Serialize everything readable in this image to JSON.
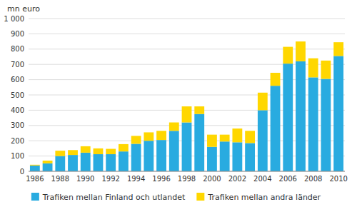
{
  "chart_data": {
    "type": "bar",
    "stacked": true,
    "y_label": "mn euro",
    "categories": [
      "1986",
      null,
      "1988",
      null,
      "1990",
      null,
      "1992",
      null,
      "1994",
      null,
      "1996",
      null,
      "1998",
      null,
      "2000",
      null,
      "2002",
      null,
      "2004",
      null,
      "2006",
      null,
      "2008",
      null,
      "2010"
    ],
    "series": [
      {
        "name": "Trafiken mellan Finland och utlandet",
        "color": "#29ABE0",
        "values": [
          38,
          52,
          100,
          107,
          122,
          112,
          112,
          130,
          180,
          200,
          205,
          265,
          320,
          375,
          160,
          195,
          190,
          185,
          400,
          560,
          705,
          720,
          615,
          605,
          755
        ]
      },
      {
        "name": "Trafiken mellan andra länder",
        "color": "#FFD700",
        "values": [
          5,
          18,
          35,
          32,
          42,
          38,
          35,
          48,
          52,
          55,
          60,
          55,
          105,
          50,
          80,
          45,
          90,
          80,
          115,
          85,
          110,
          130,
          125,
          120,
          90
        ]
      }
    ],
    "ylim": [
      0,
      1000
    ],
    "yticks": [
      0,
      100,
      200,
      300,
      400,
      500,
      600,
      700,
      800,
      900,
      {
        "value": 1000,
        "label": "1 000"
      }
    ],
    "grid": true,
    "legend": "bottom"
  }
}
